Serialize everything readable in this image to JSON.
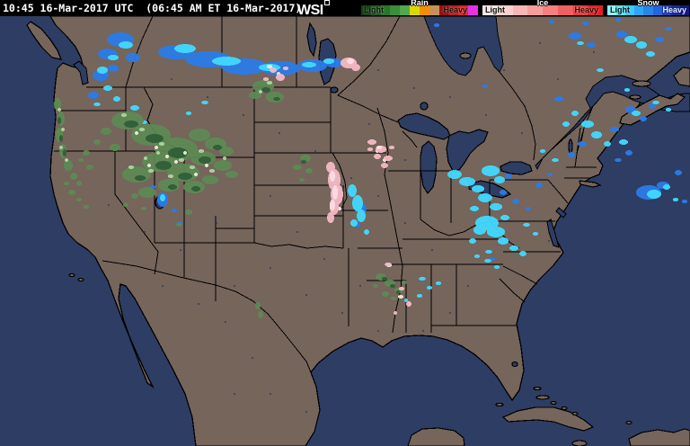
{
  "header": {
    "timestamp": "10:45 16-Mar-2017 UTC  (06:45 AM ET 16-Mar-2017)",
    "logo": "WSI"
  },
  "legend": {
    "rain": {
      "label": "Rain",
      "light": "Light",
      "heavy": "Heavy",
      "colors": [
        "#123f12",
        "#1c5a1c",
        "#297529",
        "#3a8f3a",
        "#4fa94f",
        "#d9d900",
        "#f09000",
        "#c89058",
        "#981010",
        "#c01818",
        "#e02020",
        "#e632e6"
      ]
    },
    "ice": {
      "label": "Ice",
      "light": "Light",
      "heavy": "Heavy",
      "colors": [
        "#fde4e4",
        "#fcd0d0",
        "#fab6b6",
        "#f79c9c",
        "#f48080",
        "#ef6060",
        "#e83c3c",
        "#e02222"
      ]
    },
    "snow": {
      "label": "Snow",
      "light": "Light",
      "heavy": "Heavy",
      "colors": [
        "#8af2ff",
        "#55e2ff",
        "#3cc8ff",
        "#2fa6f5",
        "#2b84e8",
        "#2764d8",
        "#2244c0",
        "#1b2da4",
        "#131c86"
      ]
    }
  },
  "palette": {
    "land": "#75655b",
    "water": "#2e3d63",
    "border": "#000000",
    "rain": "#5e8a54",
    "rain_dark": "#2e5c36",
    "rain_light": "#b2d8a2",
    "snow_bright": "#41d9ff",
    "snow_deep": "#2b7ce8",
    "ice_pink": "#f5bac6",
    "ice_light": "#fbdce4",
    "speckle": "#efe9dc"
  }
}
